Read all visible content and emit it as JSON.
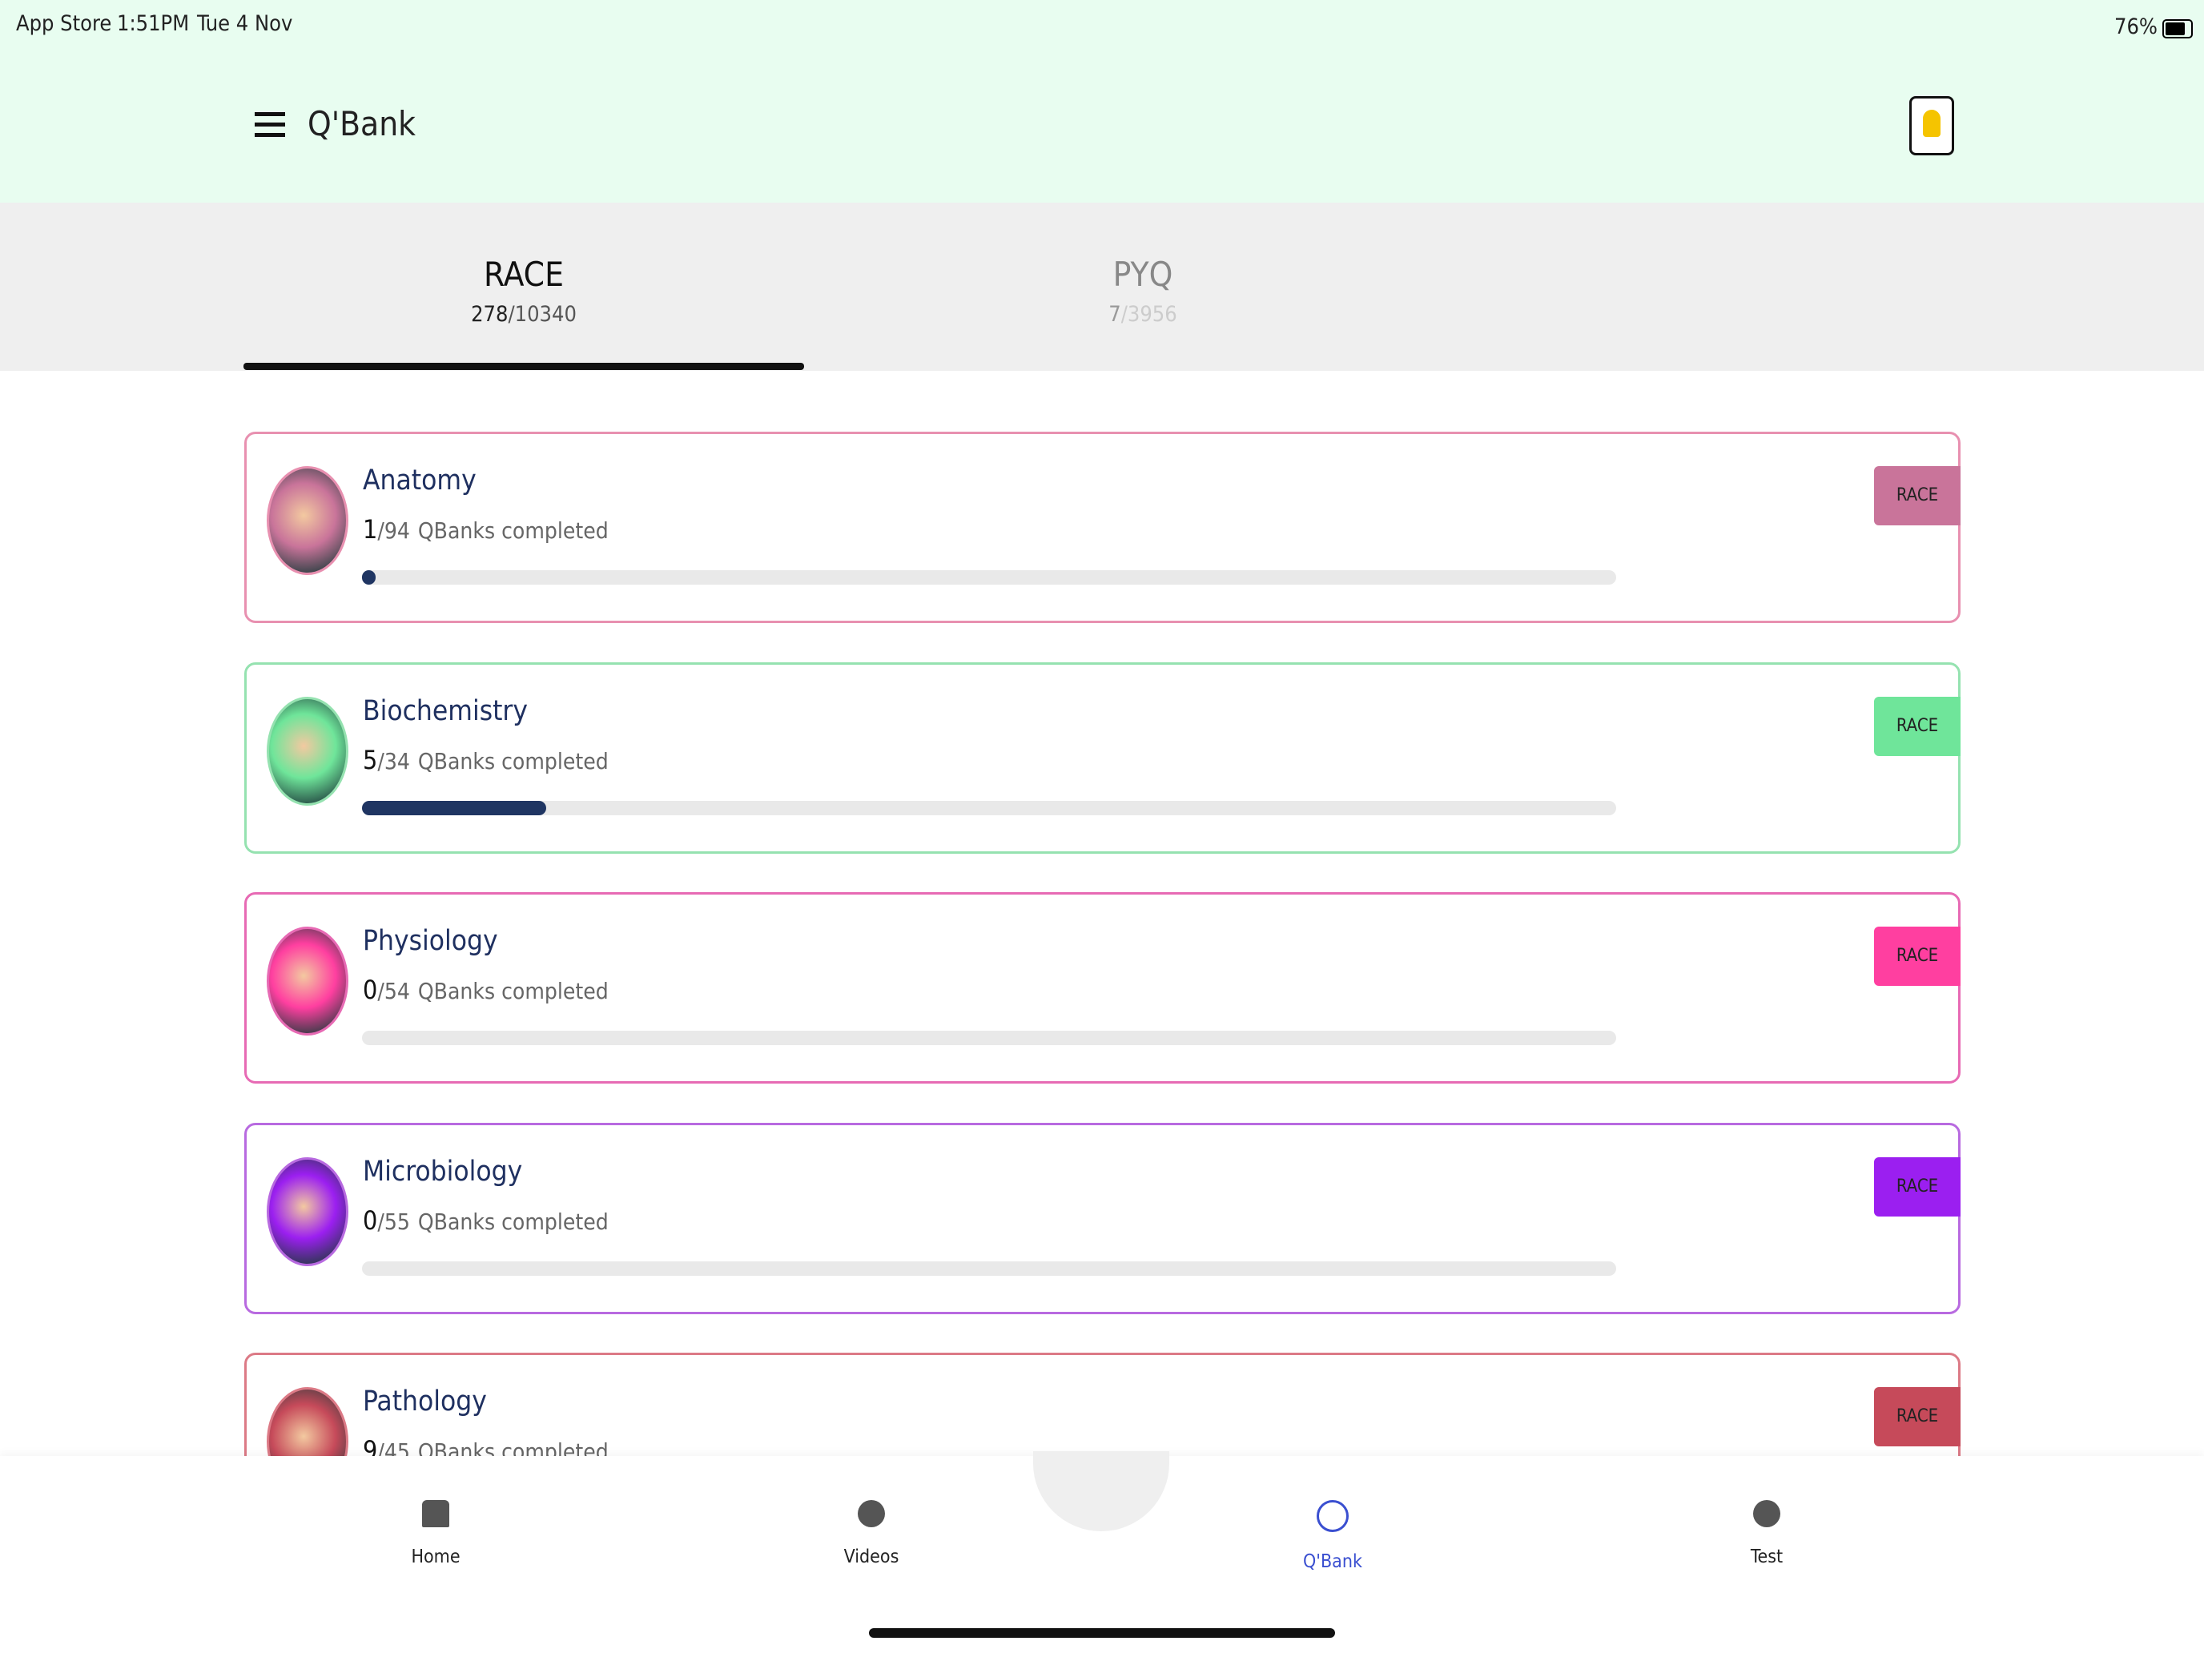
{
  "status": {
    "carrier": "App Store",
    "time": "1:51PM",
    "date": "Tue 4 Nov",
    "battery": "76%"
  },
  "header": {
    "title": "Q'Bank"
  },
  "separator": "/",
  "tabs": [
    {
      "label": "RACE",
      "done": 278,
      "total": 10340
    },
    {
      "label": "PYQ",
      "done": 7,
      "total": 3956
    }
  ],
  "cards": [
    {
      "name": "Anatomy",
      "done": 1,
      "total": 94,
      "suffix": "QBanks completed",
      "badge": "RACE",
      "color": "#c9749a",
      "border": "#e890b0"
    },
    {
      "name": "Biochemistry",
      "done": 5,
      "total": 34,
      "suffix": "QBanks completed",
      "badge": "RACE",
      "color": "#6fe59a",
      "border": "#95e2b0"
    },
    {
      "name": "Physiology",
      "done": 0,
      "total": 54,
      "suffix": "QBanks completed",
      "badge": "RACE",
      "color": "#ff3fa0",
      "border": "#e76ab4"
    },
    {
      "name": "Microbiology",
      "done": 0,
      "total": 55,
      "suffix": "QBanks completed",
      "badge": "RACE",
      "color": "#9b1ff0",
      "border": "#b86ae0"
    },
    {
      "name": "Pathology",
      "done": 9,
      "total": 45,
      "suffix": "QBanks completed",
      "badge": "RACE",
      "color": "#c64a5a",
      "border": "#dc7a86"
    }
  ],
  "nav": [
    "Home",
    "Videos",
    "Q'Bank",
    "Test"
  ]
}
